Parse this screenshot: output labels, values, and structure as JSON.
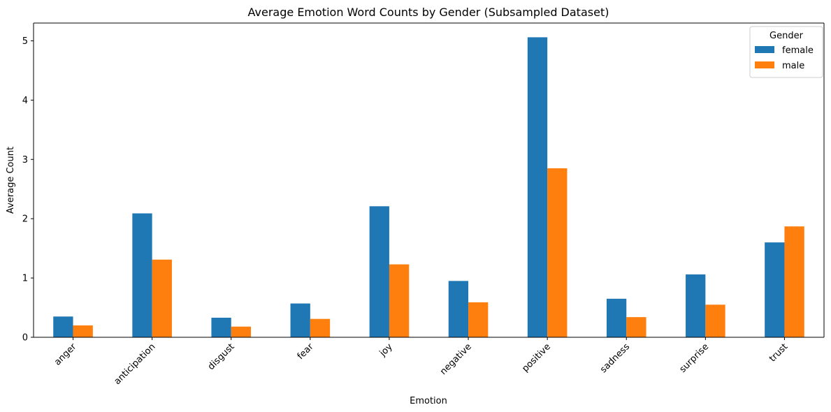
{
  "chart_data": {
    "type": "bar",
    "title": "Average Emotion Word Counts by Gender (Subsampled Dataset)",
    "xlabel": "Emotion",
    "ylabel": "Average Count",
    "categories": [
      "anger",
      "anticipation",
      "disgust",
      "fear",
      "joy",
      "negative",
      "positive",
      "sadness",
      "surprise",
      "trust"
    ],
    "series": [
      {
        "name": "female",
        "color": "#1f77b4",
        "values": [
          0.35,
          2.09,
          0.33,
          0.57,
          2.21,
          0.95,
          5.06,
          0.65,
          1.06,
          1.6
        ]
      },
      {
        "name": "male",
        "color": "#ff7f0e",
        "values": [
          0.2,
          1.31,
          0.18,
          0.31,
          1.23,
          0.59,
          2.85,
          0.34,
          0.55,
          1.87
        ]
      }
    ],
    "ylim": [
      0,
      5.3
    ],
    "yticks": [
      0,
      1,
      2,
      3,
      4,
      5
    ],
    "legend": {
      "title": "Gender",
      "placement": "top-right"
    },
    "grid": false
  }
}
